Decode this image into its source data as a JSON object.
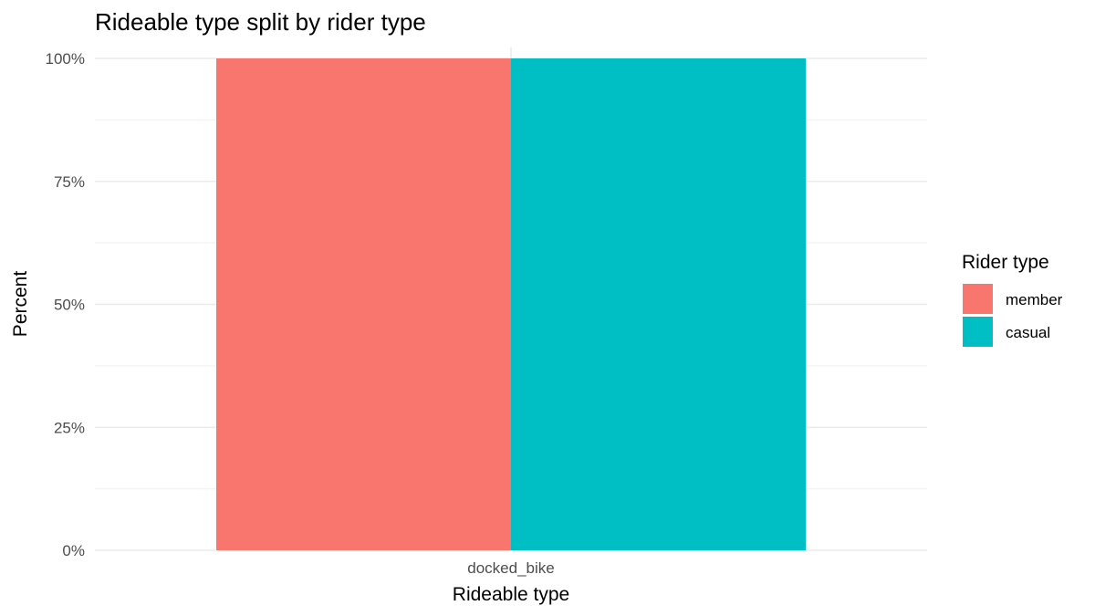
{
  "chart_data": {
    "type": "bar",
    "stacking": "dodge",
    "title": "Rideable type split by rider type",
    "xlabel": "Rideable type",
    "ylabel": "Percent",
    "categories": [
      "docked_bike"
    ],
    "series": [
      {
        "name": "member",
        "values": [
          1.0
        ],
        "color": "#F8766D"
      },
      {
        "name": "casual",
        "values": [
          1.0
        ],
        "color": "#00BFC4"
      }
    ],
    "ylim": [
      0,
      1
    ],
    "yticks": [
      0,
      0.25,
      0.5,
      0.75,
      1.0
    ],
    "ytick_labels": [
      "0%",
      "25%",
      "50%",
      "75%",
      "100%"
    ],
    "grid": true,
    "legend": {
      "title": "Rider type",
      "position": "right"
    }
  }
}
